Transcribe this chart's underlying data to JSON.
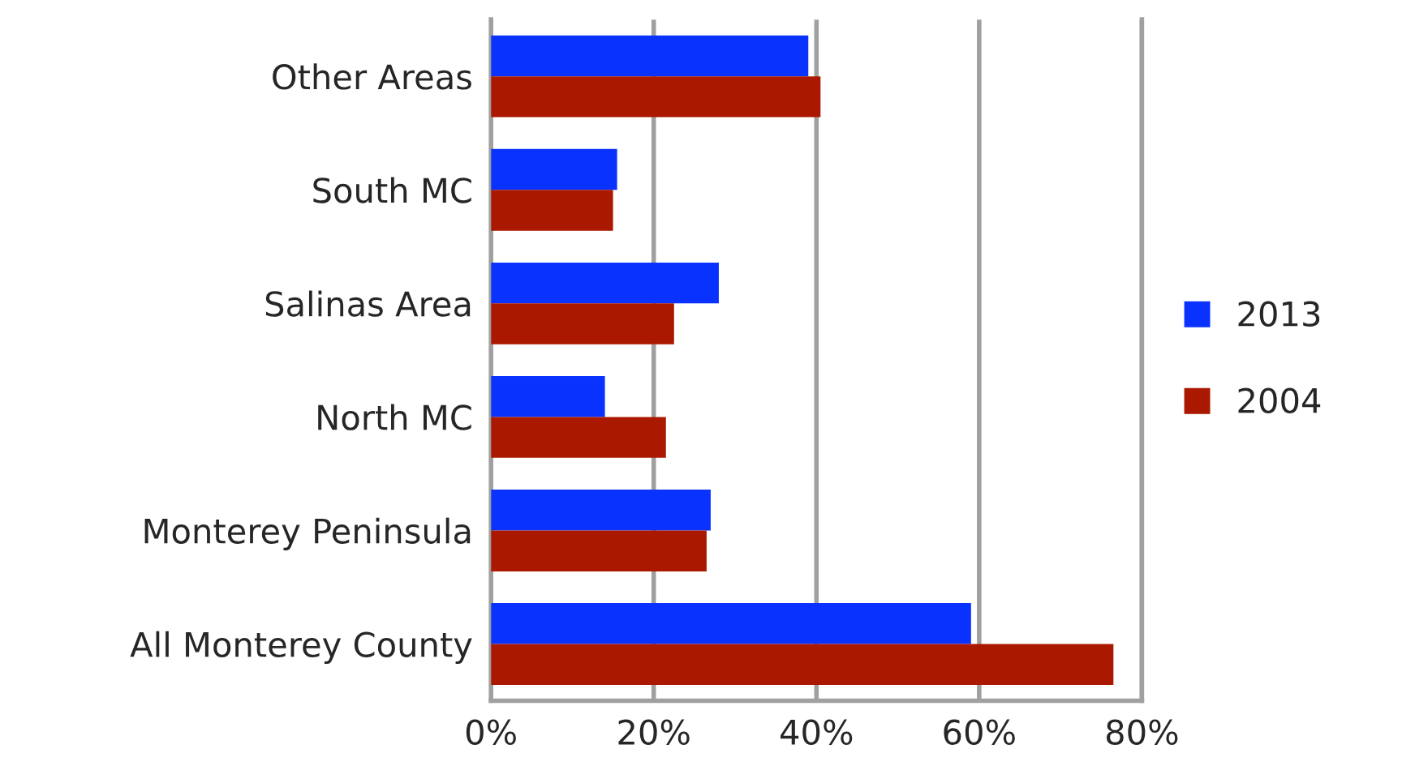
{
  "chart_data": {
    "type": "bar",
    "orientation": "horizontal",
    "categories": [
      "Other Areas",
      "South MC",
      "Salinas Area",
      "North MC",
      "Monterey Peninsula",
      "All Monterey County"
    ],
    "series": [
      {
        "name": "2013",
        "color": "#0a32ff",
        "values": [
          39,
          15.5,
          28,
          14,
          27,
          59
        ]
      },
      {
        "name": "2004",
        "color": "#aa1800",
        "values": [
          40.5,
          15,
          22.5,
          21.5,
          26.5,
          76.5
        ]
      }
    ],
    "xlim": [
      0,
      80
    ],
    "xticks": [
      {
        "value": 0,
        "label": "0%"
      },
      {
        "value": 20,
        "label": "20%"
      },
      {
        "value": 40,
        "label": "40%"
      },
      {
        "value": 60,
        "label": "60%"
      },
      {
        "value": 80,
        "label": "80%"
      }
    ],
    "grid": "x",
    "legend": "right"
  }
}
